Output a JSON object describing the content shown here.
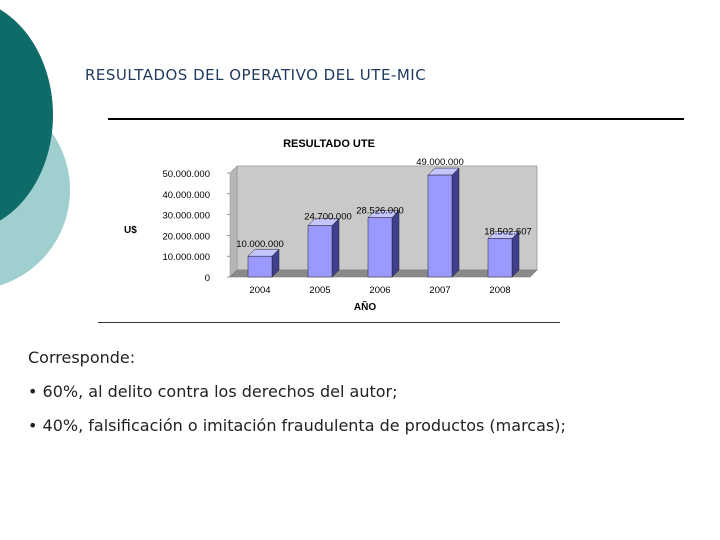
{
  "slide": {
    "title": "RESULTADOS DEL OPERATIVO DEL UTE-MIC",
    "body": {
      "intro": "Corresponde:",
      "bullets": [
        "• 60%, al delito contra los derechos del autor;",
        "• 40%, falsificación o imitación fraudulenta de productos (marcas);"
      ]
    }
  },
  "colors": {
    "teal_dark": "#0e6b68",
    "teal_light": "#9fd0cf",
    "bar_face": "#9999ff",
    "bar_side": "#3f3f8f",
    "bar_top": "#c6c6ff",
    "plot_wall": "#c9c9c9"
  },
  "chart_data": {
    "type": "bar",
    "title": "RESULTADO UTE",
    "xlabel": "AÑO",
    "ylabel": "U$",
    "categories": [
      "2004",
      "2005",
      "2006",
      "2007",
      "2008"
    ],
    "values": [
      10000000,
      24700000,
      28526000,
      49000000,
      18502607
    ],
    "data_labels": [
      "10.000.000",
      "24.700.000",
      "28.526.000",
      "49.000.000",
      "18.502.607"
    ],
    "ylim": [
      0,
      50000000
    ],
    "yticks": [
      0,
      10000000,
      20000000,
      30000000,
      40000000,
      50000000
    ],
    "ytick_labels": [
      "0",
      "10.000.000",
      "20.000.000",
      "30.000.000",
      "40.000.000",
      "50.000.000"
    ],
    "grid": false,
    "legend": "none",
    "style": "3d-column"
  }
}
